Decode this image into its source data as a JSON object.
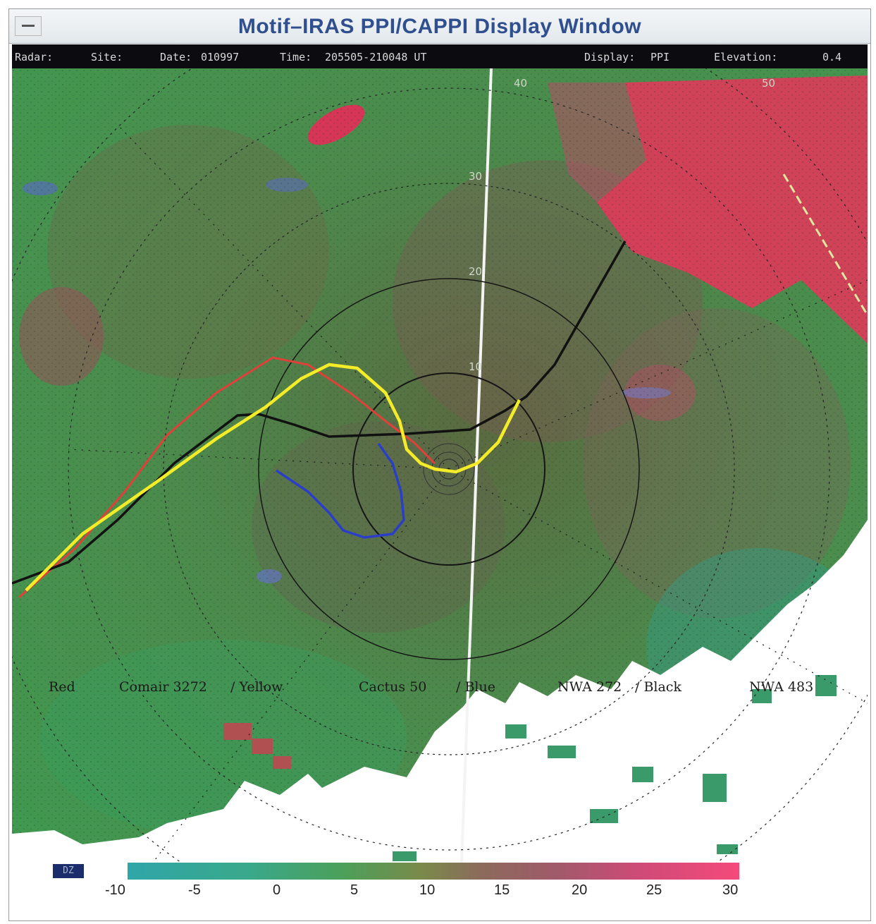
{
  "window": {
    "title": "Motif–IRAS PPI/CAPPI Display Window"
  },
  "infobar": {
    "radar_label": "Radar:",
    "site_label": "Site:",
    "date_label": "Date:",
    "date_value": "010997",
    "time_label": "Time:",
    "time_value": "205505-210048 UT",
    "display_label": "Display:",
    "display_value": "PPI",
    "elevation_label": "Elevation:",
    "elevation_value": "0.4"
  },
  "range_rings": [
    "10",
    "20",
    "30",
    "40",
    "50"
  ],
  "legend": {
    "red_label": "Red",
    "red_flight": "Comair 3272",
    "yellow_label": "/ Yellow",
    "yellow_flight": "Cactus 50",
    "blue_label": "/ Blue",
    "blue_flight": "NWA 272",
    "black_label": "/ Black",
    "black_flight": "NWA 483"
  },
  "track_colors": {
    "red": "#e0403a",
    "yellow": "#f4ec28",
    "blue": "#2a3ec8",
    "black": "#111111"
  },
  "colorbar": {
    "unit_tag": "DZ",
    "ticks": [
      "-10",
      "-5",
      "0",
      "5",
      "10",
      "15",
      "20",
      "25",
      "30"
    ]
  }
}
